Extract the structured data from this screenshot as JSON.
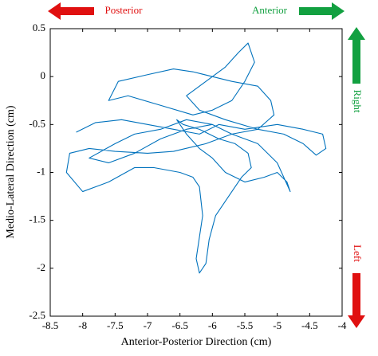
{
  "chart_data": {
    "type": "line",
    "xlabel": "Anterior-Posterior Direction (cm)",
    "ylabel": "Medio-Lateral Direction (cm)",
    "annotations": [
      "Posterior",
      "Anterior",
      "Right",
      "Left"
    ],
    "xlim": [
      -8.5,
      -4
    ],
    "ylim": [
      -2.5,
      0.5
    ],
    "xticks": [
      -8.5,
      -8,
      -7.5,
      -7,
      -6.5,
      -6,
      -5.5,
      -5,
      -4.5,
      -4
    ],
    "yticks": [
      -2.5,
      -2,
      -1.5,
      -1,
      -0.5,
      0,
      0.5
    ],
    "grid": false,
    "series": [
      {
        "color": "#0072bd",
        "x": [
          -8.1,
          -7.8,
          -7.4,
          -7.0,
          -6.6,
          -6.2,
          -5.9,
          -5.5,
          -5.0,
          -4.6,
          -4.3,
          -4.25,
          -4.4,
          -4.6,
          -4.9,
          -5.3,
          -5.8,
          -6.2,
          -6.4,
          -6.1,
          -5.8,
          -5.6,
          -5.45,
          -5.35,
          -5.5,
          -5.7,
          -6.0,
          -6.3,
          -6.8,
          -7.3,
          -7.6,
          -7.45,
          -7.0,
          -6.6,
          -6.3,
          -6.0,
          -5.7,
          -5.3,
          -5.1,
          -5.05,
          -5.3,
          -5.7,
          -6.1,
          -6.6,
          -7.0,
          -7.5,
          -7.9,
          -8.2,
          -8.25,
          -8.0,
          -7.6,
          -7.2,
          -6.9,
          -6.5,
          -6.3,
          -6.2,
          -6.15,
          -6.25,
          -6.2,
          -6.1,
          -6.05,
          -5.95,
          -5.7,
          -5.55,
          -5.4,
          -5.45,
          -5.65,
          -5.9,
          -6.2,
          -6.45,
          -6.55,
          -6.4,
          -6.2,
          -6.0,
          -5.8,
          -5.5,
          -5.2,
          -5.0,
          -4.85,
          -4.8,
          -5.0,
          -5.3,
          -5.7,
          -6.0,
          -6.4,
          -6.8,
          -7.2,
          -7.5,
          -7.9,
          -7.6,
          -7.2,
          -6.8,
          -6.4,
          -6.0
        ],
        "values": [
          -0.58,
          -0.48,
          -0.45,
          -0.5,
          -0.55,
          -0.6,
          -0.5,
          -0.55,
          -0.5,
          -0.55,
          -0.6,
          -0.75,
          -0.82,
          -0.7,
          -0.6,
          -0.55,
          -0.45,
          -0.35,
          -0.2,
          -0.05,
          0.1,
          0.25,
          0.35,
          0.15,
          -0.05,
          -0.25,
          -0.35,
          -0.4,
          -0.3,
          -0.2,
          -0.25,
          -0.05,
          0.02,
          0.08,
          0.05,
          0.0,
          -0.05,
          -0.1,
          -0.25,
          -0.4,
          -0.55,
          -0.6,
          -0.7,
          -0.78,
          -0.8,
          -0.78,
          -0.75,
          -0.8,
          -1.0,
          -1.2,
          -1.1,
          -0.95,
          -0.95,
          -1.0,
          -1.05,
          -1.15,
          -1.45,
          -1.9,
          -2.05,
          -1.95,
          -1.7,
          -1.45,
          -1.2,
          -1.05,
          -0.95,
          -0.8,
          -0.7,
          -0.65,
          -0.55,
          -0.5,
          -0.45,
          -0.6,
          -0.75,
          -0.85,
          -1.0,
          -1.1,
          -1.05,
          -1.0,
          -1.1,
          -1.2,
          -0.9,
          -0.7,
          -0.6,
          -0.5,
          -0.45,
          -0.55,
          -0.6,
          -0.7,
          -0.85,
          -0.9,
          -0.8,
          -0.65,
          -0.55,
          -0.5
        ]
      }
    ]
  }
}
